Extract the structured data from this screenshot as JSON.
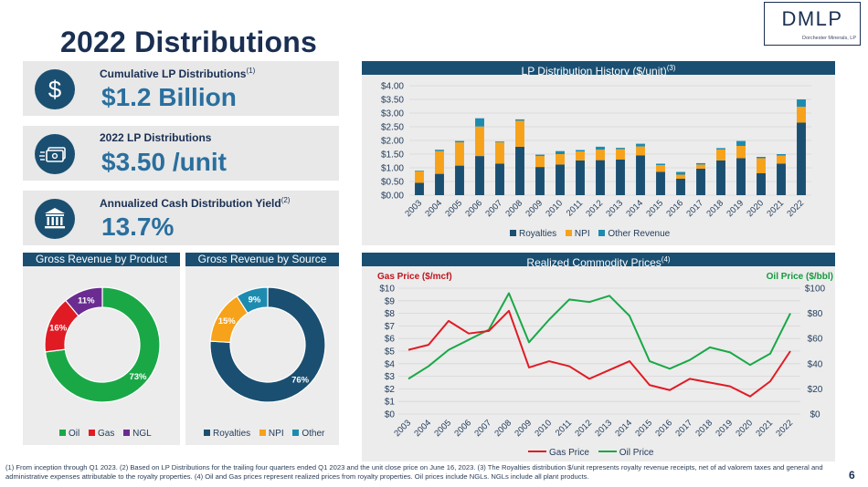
{
  "page": {
    "title": "2022 Distributions",
    "page_number": "6"
  },
  "logo": {
    "name": "DMLP",
    "subtitle": "Dorchester Minerals, LP"
  },
  "stats": [
    {
      "label": "Cumulative LP Distributions",
      "note": "(1)",
      "value": "$1.2  Billion",
      "icon": "dollar-icon"
    },
    {
      "label": "2022 LP Distributions",
      "note": "",
      "value": "$3.50 /unit",
      "icon": "cash-icon"
    },
    {
      "label": "Annualized Cash Distribution Yield",
      "note": "(2)",
      "value": "13.7%",
      "icon": "bank-icon"
    }
  ],
  "colors": {
    "navy": "#1a4f71",
    "royalties": "#1a4f71",
    "npi": "#f7a21b",
    "other": "#1d8bb0",
    "oil": "#1aa847",
    "gas": "#e01b24",
    "ngl": "#6a2c91"
  },
  "chart_data": [
    {
      "type": "bar",
      "title": "LP Distribution History ($/unit)",
      "title_note": "(3)",
      "stacked": true,
      "categories": [
        "2003",
        "2004",
        "2005",
        "2006",
        "2007",
        "2008",
        "2009",
        "2010",
        "2011",
        "2012",
        "2013",
        "2014",
        "2015",
        "2016",
        "2017",
        "2018",
        "2019",
        "2020",
        "2021",
        "2022"
      ],
      "series": [
        {
          "name": "Royalties",
          "values": [
            0.45,
            0.78,
            1.08,
            1.43,
            1.15,
            1.77,
            1.03,
            1.12,
            1.27,
            1.28,
            1.3,
            1.45,
            0.85,
            0.6,
            0.97,
            1.27,
            1.35,
            0.8,
            1.15,
            2.65
          ]
        },
        {
          "name": "NPI",
          "values": [
            0.43,
            0.83,
            0.85,
            1.08,
            0.78,
            0.95,
            0.4,
            0.38,
            0.33,
            0.38,
            0.38,
            0.33,
            0.25,
            0.15,
            0.15,
            0.4,
            0.45,
            0.55,
            0.3,
            0.58
          ]
        },
        {
          "name": "Other Revenue",
          "values": [
            0.02,
            0.05,
            0.05,
            0.3,
            0.03,
            0.05,
            0.05,
            0.11,
            0.05,
            0.11,
            0.05,
            0.1,
            0.05,
            0.1,
            0.05,
            0.05,
            0.18,
            0.05,
            0.05,
            0.27
          ]
        }
      ],
      "yticks": [
        "$0.00",
        "$0.50",
        "$1.00",
        "$1.50",
        "$2.00",
        "$2.50",
        "$3.00",
        "$3.50",
        "$4.00"
      ],
      "ylim": [
        0,
        4
      ],
      "legend": "bottom"
    },
    {
      "type": "pie",
      "title": "Gross Revenue by Product",
      "donut": true,
      "labels": [
        "Oil",
        "Gas",
        "NGL"
      ],
      "values": [
        73,
        16,
        11
      ],
      "value_labels": [
        "73%",
        "16%",
        "11%"
      ],
      "legend": "bottom"
    },
    {
      "type": "pie",
      "title": "Gross Revenue by Source",
      "donut": true,
      "labels": [
        "Royalties",
        "NPI",
        "Other"
      ],
      "values": [
        76,
        15,
        9
      ],
      "value_labels": [
        "76%",
        "15%",
        "9%"
      ],
      "legend": "bottom"
    },
    {
      "type": "line",
      "title": "Realized Commodity Prices",
      "title_note": "(4)",
      "x": [
        "2003",
        "2004",
        "2005",
        "2006",
        "2007",
        "2008",
        "2009",
        "2010",
        "2011",
        "2012",
        "2013",
        "2014",
        "2015",
        "2016",
        "2017",
        "2018",
        "2019",
        "2020",
        "2021",
        "2022"
      ],
      "series": [
        {
          "name": "Gas Price",
          "axis": "left",
          "values": [
            5.1,
            5.5,
            7.4,
            6.4,
            6.6,
            8.2,
            3.7,
            4.2,
            3.8,
            2.8,
            3.5,
            4.2,
            2.3,
            1.9,
            2.8,
            2.5,
            2.2,
            1.4,
            2.6,
            5.0
          ]
        },
        {
          "name": "Oil Price",
          "axis": "right",
          "values": [
            28,
            38,
            51,
            59,
            67,
            96,
            57,
            75,
            91,
            89,
            94,
            78,
            42,
            36,
            43,
            53,
            49,
            39,
            48,
            80
          ]
        }
      ],
      "ylabel_left": "Gas Price ($/mcf)",
      "ylabel_right": "Oil Price ($/bbl)",
      "yticks_left": [
        "$0",
        "$1",
        "$2",
        "$3",
        "$4",
        "$5",
        "$6",
        "$7",
        "$8",
        "$9",
        "$10"
      ],
      "yticks_right": [
        "$0",
        "$20",
        "$40",
        "$60",
        "$80",
        "$100"
      ],
      "ylim_left": [
        0,
        10
      ],
      "ylim_right": [
        0,
        100
      ],
      "legend": "bottom"
    }
  ],
  "footnote": "(1) From inception through Q1 2023. (2) Based on LP Distributions for the trailing four quarters ended Q1 2023 and the unit close price on June 16, 2023. (3) The Royalties distribution $/unit represents royalty revenue receipts, net of ad valorem taxes and general and administrative expenses attributable to the royalty properties. (4) Oil and Gas prices represent realized prices from royalty properties. Oil prices include NGLs.  NGLs include all plant products."
}
